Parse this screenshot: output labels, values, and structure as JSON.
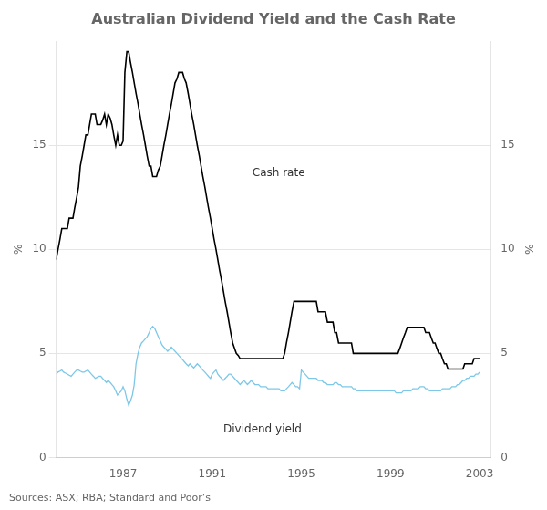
{
  "chart_data": {
    "type": "line",
    "title": "Australian Dividend Yield and the Cash Rate",
    "source": "Sources: ASX; RBA; Standard and Poor’s",
    "ylabel": "%",
    "y2label": "%",
    "x": [
      1984.0,
      1984.08,
      1984.17,
      1984.25,
      1984.33,
      1984.42,
      1984.5,
      1984.58,
      1984.67,
      1984.75,
      1984.83,
      1984.92,
      1985.0,
      1985.08,
      1985.17,
      1985.25,
      1985.33,
      1985.42,
      1985.5,
      1985.58,
      1985.67,
      1985.75,
      1985.83,
      1985.92,
      1986.0,
      1986.08,
      1986.17,
      1986.25,
      1986.33,
      1986.42,
      1986.5,
      1986.58,
      1986.67,
      1986.75,
      1986.83,
      1986.92,
      1987.0,
      1987.08,
      1987.17,
      1987.25,
      1987.33,
      1987.42,
      1987.5,
      1987.58,
      1987.67,
      1987.75,
      1987.83,
      1987.92,
      1988.0,
      1988.08,
      1988.17,
      1988.25,
      1988.33,
      1988.42,
      1988.5,
      1988.58,
      1988.67,
      1988.75,
      1988.83,
      1988.92,
      1989.0,
      1989.08,
      1989.17,
      1989.25,
      1989.33,
      1989.42,
      1989.5,
      1989.58,
      1989.67,
      1989.75,
      1989.83,
      1989.92,
      1990.0,
      1990.08,
      1990.17,
      1990.25,
      1990.33,
      1990.42,
      1990.5,
      1990.58,
      1990.67,
      1990.75,
      1990.83,
      1990.92,
      1991.0,
      1991.08,
      1991.17,
      1991.25,
      1991.33,
      1991.42,
      1991.5,
      1991.58,
      1991.67,
      1991.75,
      1991.83,
      1991.92,
      1992.0,
      1992.08,
      1992.17,
      1992.25,
      1992.33,
      1992.42,
      1992.5,
      1992.58,
      1992.67,
      1992.75,
      1992.83,
      1992.92,
      1993.0,
      1993.08,
      1993.17,
      1993.25,
      1993.33,
      1993.42,
      1993.5,
      1993.58,
      1993.67,
      1993.75,
      1993.83,
      1993.92,
      1994.0,
      1994.08,
      1994.17,
      1994.25,
      1994.33,
      1994.42,
      1994.5,
      1994.58,
      1994.67,
      1994.75,
      1994.83,
      1994.92,
      1995.0,
      1995.08,
      1995.17,
      1995.25,
      1995.33,
      1995.42,
      1995.5,
      1995.58,
      1995.67,
      1995.75,
      1995.83,
      1995.92,
      1996.0,
      1996.08,
      1996.17,
      1996.25,
      1996.33,
      1996.42,
      1996.5,
      1996.58,
      1996.67,
      1996.75,
      1996.83,
      1996.92,
      1997.0,
      1997.08,
      1997.17,
      1997.25,
      1997.33,
      1997.42,
      1997.5,
      1997.58,
      1997.67,
      1997.75,
      1997.83,
      1997.92,
      1998.0,
      1998.08,
      1998.17,
      1998.25,
      1998.33,
      1998.42,
      1998.5,
      1998.58,
      1998.67,
      1998.75,
      1998.83,
      1998.92,
      1999.0,
      1999.08,
      1999.17,
      1999.25,
      1999.33,
      1999.42,
      1999.5,
      1999.58,
      1999.67,
      1999.75,
      1999.83,
      1999.92,
      2000.0,
      2000.08,
      2000.17,
      2000.25,
      2000.33,
      2000.42,
      2000.5,
      2000.58,
      2000.67,
      2000.75,
      2000.83,
      2000.92,
      2001.0,
      2001.08,
      2001.17,
      2001.25,
      2001.33,
      2001.42,
      2001.5,
      2001.58,
      2001.67,
      2001.75,
      2001.83,
      2001.92,
      2002.0,
      2002.08,
      2002.17,
      2002.25,
      2002.33,
      2002.42,
      2002.5,
      2002.58,
      2002.67,
      2002.75,
      2002.83,
      2002.92,
      2003.0
    ],
    "series": [
      {
        "color": "#000000",
        "values": [
          9.5,
          10.0,
          10.5,
          11.0,
          11.0,
          11.0,
          11.0,
          11.5,
          11.5,
          11.5,
          12.0,
          12.5,
          13.0,
          14.0,
          14.5,
          15.0,
          15.5,
          15.5,
          16.0,
          16.5,
          16.5,
          16.5,
          16.0,
          16.0,
          16.0,
          16.2,
          16.5,
          16.0,
          16.5,
          16.3,
          16.0,
          15.5,
          15.0,
          15.5,
          15.0,
          15.0,
          15.2,
          18.5,
          19.5,
          19.5,
          19.0,
          18.5,
          18.0,
          17.5,
          17.0,
          16.5,
          16.0,
          15.5,
          15.0,
          14.5,
          14.0,
          14.0,
          13.5,
          13.5,
          13.5,
          13.8,
          14.0,
          14.5,
          15.0,
          15.5,
          16.0,
          16.5,
          17.0,
          17.5,
          18.0,
          18.2,
          18.5,
          18.5,
          18.5,
          18.2,
          18.0,
          17.5,
          17.0,
          16.5,
          16.0,
          15.5,
          15.0,
          14.5,
          14.0,
          13.5,
          13.0,
          12.5,
          12.0,
          11.5,
          11.0,
          10.5,
          10.0,
          9.5,
          9.0,
          8.5,
          8.0,
          7.5,
          7.0,
          6.5,
          6.0,
          5.5,
          5.25,
          5.0,
          4.9,
          4.75,
          4.75,
          4.75,
          4.75,
          4.75,
          4.75,
          4.75,
          4.75,
          4.75,
          4.75,
          4.75,
          4.75,
          4.75,
          4.75,
          4.75,
          4.75,
          4.75,
          4.75,
          4.75,
          4.75,
          4.75,
          4.75,
          4.75,
          4.75,
          5.0,
          5.5,
          6.0,
          6.5,
          7.0,
          7.5,
          7.5,
          7.5,
          7.5,
          7.5,
          7.5,
          7.5,
          7.5,
          7.5,
          7.5,
          7.5,
          7.5,
          7.5,
          7.0,
          7.0,
          7.0,
          7.0,
          7.0,
          6.5,
          6.5,
          6.5,
          6.5,
          6.0,
          6.0,
          5.5,
          5.5,
          5.5,
          5.5,
          5.5,
          5.5,
          5.5,
          5.5,
          5.0,
          5.0,
          5.0,
          5.0,
          5.0,
          5.0,
          5.0,
          5.0,
          5.0,
          5.0,
          5.0,
          5.0,
          5.0,
          5.0,
          5.0,
          5.0,
          5.0,
          5.0,
          5.0,
          5.0,
          5.0,
          5.0,
          5.0,
          5.0,
          5.0,
          5.25,
          5.5,
          5.75,
          6.0,
          6.25,
          6.25,
          6.25,
          6.25,
          6.25,
          6.25,
          6.25,
          6.25,
          6.25,
          6.25,
          6.0,
          6.0,
          6.0,
          5.75,
          5.5,
          5.5,
          5.25,
          5.0,
          5.0,
          4.75,
          4.5,
          4.5,
          4.25,
          4.25,
          4.25,
          4.25,
          4.25,
          4.25,
          4.25,
          4.25,
          4.25,
          4.5,
          4.5,
          4.5,
          4.5,
          4.5,
          4.75,
          4.75,
          4.75,
          4.75
        ]
      },
      {
        "color": "#7dc8e8",
        "values": [
          4.0,
          4.1,
          4.15,
          4.2,
          4.1,
          4.05,
          4.0,
          3.95,
          3.9,
          4.0,
          4.1,
          4.2,
          4.2,
          4.15,
          4.1,
          4.1,
          4.15,
          4.2,
          4.1,
          4.0,
          3.9,
          3.8,
          3.85,
          3.9,
          3.9,
          3.8,
          3.7,
          3.6,
          3.7,
          3.6,
          3.5,
          3.4,
          3.2,
          3.0,
          3.1,
          3.2,
          3.4,
          3.2,
          2.8,
          2.5,
          2.7,
          3.0,
          3.5,
          4.5,
          5.0,
          5.3,
          5.5,
          5.6,
          5.7,
          5.8,
          6.0,
          6.2,
          6.3,
          6.2,
          6.0,
          5.8,
          5.6,
          5.4,
          5.3,
          5.2,
          5.1,
          5.2,
          5.3,
          5.2,
          5.1,
          5.0,
          4.9,
          4.8,
          4.7,
          4.6,
          4.5,
          4.4,
          4.5,
          4.4,
          4.3,
          4.4,
          4.5,
          4.4,
          4.3,
          4.2,
          4.1,
          4.0,
          3.9,
          3.8,
          4.0,
          4.1,
          4.2,
          4.0,
          3.9,
          3.8,
          3.7,
          3.8,
          3.9,
          4.0,
          4.0,
          3.9,
          3.8,
          3.7,
          3.6,
          3.5,
          3.6,
          3.7,
          3.6,
          3.5,
          3.6,
          3.7,
          3.6,
          3.5,
          3.5,
          3.5,
          3.4,
          3.4,
          3.4,
          3.4,
          3.3,
          3.3,
          3.3,
          3.3,
          3.3,
          3.3,
          3.3,
          3.2,
          3.2,
          3.2,
          3.3,
          3.4,
          3.5,
          3.6,
          3.5,
          3.4,
          3.4,
          3.3,
          4.2,
          4.1,
          4.0,
          3.9,
          3.8,
          3.8,
          3.8,
          3.8,
          3.8,
          3.7,
          3.7,
          3.7,
          3.6,
          3.6,
          3.5,
          3.5,
          3.5,
          3.5,
          3.6,
          3.6,
          3.5,
          3.5,
          3.4,
          3.4,
          3.4,
          3.4,
          3.4,
          3.4,
          3.3,
          3.3,
          3.2,
          3.2,
          3.2,
          3.2,
          3.2,
          3.2,
          3.2,
          3.2,
          3.2,
          3.2,
          3.2,
          3.2,
          3.2,
          3.2,
          3.2,
          3.2,
          3.2,
          3.2,
          3.2,
          3.2,
          3.2,
          3.1,
          3.1,
          3.1,
          3.1,
          3.2,
          3.2,
          3.2,
          3.2,
          3.2,
          3.3,
          3.3,
          3.3,
          3.3,
          3.4,
          3.4,
          3.4,
          3.3,
          3.3,
          3.2,
          3.2,
          3.2,
          3.2,
          3.2,
          3.2,
          3.2,
          3.3,
          3.3,
          3.3,
          3.3,
          3.3,
          3.4,
          3.4,
          3.4,
          3.5,
          3.5,
          3.6,
          3.7,
          3.7,
          3.8,
          3.8,
          3.9,
          3.9,
          3.9,
          4.0,
          4.0,
          4.1
        ]
      }
    ],
    "annotations": [
      {
        "text": "Cash rate",
        "x": 1992.8,
        "y": 13.5
      },
      {
        "text": "Dividend yield",
        "x": 1991.5,
        "y": 1.2
      }
    ],
    "xlim": [
      1984.0,
      2003.5
    ],
    "xticks": [
      1987,
      1991,
      1995,
      1999,
      2003
    ],
    "ylim": [
      0,
      20
    ],
    "yticks": [
      0,
      5,
      10,
      15
    ],
    "y2lim": [
      0,
      20
    ],
    "y2ticks": [
      0,
      5,
      10,
      15
    ],
    "grid": "y"
  }
}
